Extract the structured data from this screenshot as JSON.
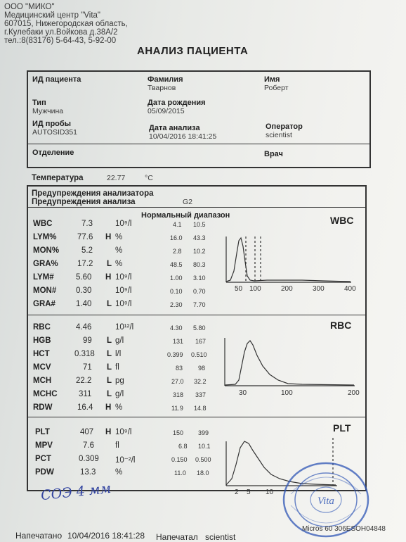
{
  "header": {
    "lines": [
      "ООО \"МИКО\"",
      "Медицинский центр \"Vita\"",
      "607015, Нижегородская область,",
      "г.Кулебаки ул.Войкова д.38А/2",
      "тел.:8(83176) 5-64-43, 5-92-00"
    ]
  },
  "title": "АНАЛИЗ ПАЦИЕНТА",
  "patient": {
    "id_label": "ИД пациента",
    "surname_label": "Фамилия",
    "surname": "Тварнов",
    "name_label": "Имя",
    "name": "Роберт",
    "type_label": "Тип",
    "type": "Мужчина",
    "dob_label": "Дата рождения",
    "dob": "05/09/2015",
    "sample_label": "ИД пробы",
    "sample": "AUTOSID351",
    "analysis_date_label": "Дата анализа",
    "analysis_date": "10/04/2016 18:41:25",
    "operator_label": "Оператор",
    "operator": "scientist",
    "dept_label": "Отделение",
    "doctor_label": "Врач"
  },
  "temperature": {
    "label": "Температура",
    "value": "22.77",
    "unit": "°C"
  },
  "warnings": {
    "analyzer_label": "Предупреждения анализатора",
    "analysis_label": "Предупреждения анализа",
    "analysis_value": "G2"
  },
  "normal_range_label": "Нормальный диапазон",
  "wbc": {
    "title": "WBC",
    "rows": [
      {
        "name": "WBC",
        "value": "7.3",
        "flag": "",
        "unit": "10⁹/l",
        "low": "4.1",
        "high": "10.5"
      },
      {
        "name": "LYM%",
        "value": "77.6",
        "flag": "H",
        "unit": "%",
        "low": "16.0",
        "high": "43.3"
      },
      {
        "name": "MON%",
        "value": "5.2",
        "flag": "",
        "unit": "%",
        "low": "2.8",
        "high": "10.2"
      },
      {
        "name": "GRA%",
        "value": "17.2",
        "flag": "L",
        "unit": "%",
        "low": "48.5",
        "high": "80.3"
      },
      {
        "name": "LYM#",
        "value": "5.60",
        "flag": "H",
        "unit": "10⁹/l",
        "low": "1.00",
        "high": "3.10"
      },
      {
        "name": "MON#",
        "value": "0.30",
        "flag": "",
        "unit": "10⁹/l",
        "low": "0.10",
        "high": "0.70"
      },
      {
        "name": "GRA#",
        "value": "1.40",
        "flag": "L",
        "unit": "10⁹/l",
        "low": "2.30",
        "high": "7.70"
      }
    ]
  },
  "rbc": {
    "title": "RBC",
    "rows": [
      {
        "name": "RBC",
        "value": "4.46",
        "flag": "",
        "unit": "10¹²/l",
        "low": "4.30",
        "high": "5.80"
      },
      {
        "name": "HGB",
        "value": "99",
        "flag": "L",
        "unit": "g/l",
        "low": "131",
        "high": "167"
      },
      {
        "name": "HCT",
        "value": "0.318",
        "flag": "L",
        "unit": "l/l",
        "low": "0.399",
        "high": "0.510"
      },
      {
        "name": "MCV",
        "value": "71",
        "flag": "L",
        "unit": "fl",
        "low": "83",
        "high": "98"
      },
      {
        "name": "MCH",
        "value": "22.2",
        "flag": "L",
        "unit": "pg",
        "low": "27.0",
        "high": "32.2"
      },
      {
        "name": "MCHC",
        "value": "311",
        "flag": "L",
        "unit": "g/l",
        "low": "318",
        "high": "337"
      },
      {
        "name": "RDW",
        "value": "16.4",
        "flag": "H",
        "unit": "%",
        "low": "11.9",
        "high": "14.8"
      }
    ]
  },
  "plt": {
    "title": "PLT",
    "rows": [
      {
        "name": "PLT",
        "value": "407",
        "flag": "H",
        "unit": "10⁹/l",
        "low": "150",
        "high": "399"
      },
      {
        "name": "MPV",
        "value": "7.6",
        "flag": "",
        "unit": "fl",
        "low": "6.8",
        "high": "10.1"
      },
      {
        "name": "PCT",
        "value": "0.309",
        "flag": "",
        "unit": "10⁻²/l",
        "low": "0.150",
        "high": "0.500"
      },
      {
        "name": "PDW",
        "value": "13.3",
        "flag": "",
        "unit": "%",
        "low": "11.0",
        "high": "18.0"
      }
    ]
  },
  "charts": {
    "wbc_ticks": [
      "50",
      "100",
      "200",
      "300",
      "400"
    ],
    "rbc_ticks": [
      "30",
      "100",
      "200"
    ],
    "plt_ticks": [
      "2",
      "5",
      "10"
    ]
  },
  "footer": {
    "printed_label": "Напечатано",
    "printed_date": "10/04/2016 18:41:28",
    "printed_by_label": "Напечатал",
    "printed_by": "scientist",
    "device": "Micros 60  306ESOH04848",
    "handwriting": "СОЭ 4 мм"
  },
  "stamp": {
    "text": "Vita",
    "color": "#2f56b5"
  }
}
